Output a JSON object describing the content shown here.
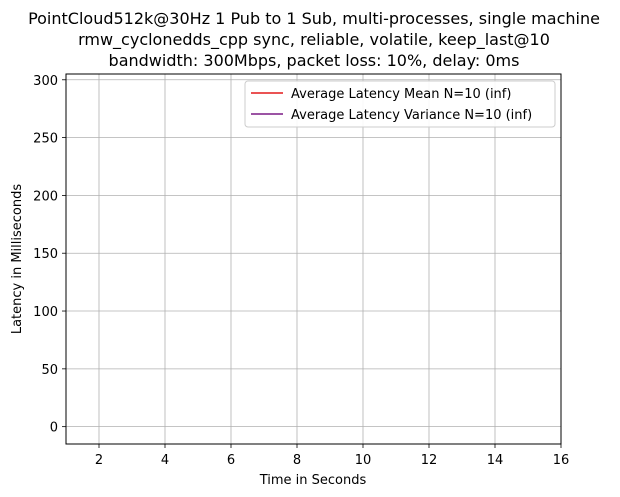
{
  "chart_data": {
    "type": "line",
    "title_lines": [
      "PointCloud512k@30Hz 1 Pub to 1 Sub, multi-processes, single machine",
      "rmw_cyclonedds_cpp sync, reliable, volatile, keep_last@10",
      "bandwidth: 300Mbps, packet loss: 10%, delay: 0ms"
    ],
    "xlabel": "Time in Seconds",
    "ylabel": "Latency in Milliseconds",
    "xlim": [
      1,
      16
    ],
    "ylim": [
      -15,
      305
    ],
    "xticks": [
      2,
      4,
      6,
      8,
      10,
      12,
      14,
      16
    ],
    "yticks": [
      0,
      50,
      100,
      150,
      200,
      250,
      300
    ],
    "grid": true,
    "legend_position": "top-right",
    "series": [
      {
        "name": "Average Latency Mean N=10 (inf)",
        "color": "#e41a1c",
        "x": [],
        "y": []
      },
      {
        "name": "Average Latency Variance N=10 (inf)",
        "color": "#7b1c86",
        "x": [],
        "y": []
      }
    ]
  }
}
